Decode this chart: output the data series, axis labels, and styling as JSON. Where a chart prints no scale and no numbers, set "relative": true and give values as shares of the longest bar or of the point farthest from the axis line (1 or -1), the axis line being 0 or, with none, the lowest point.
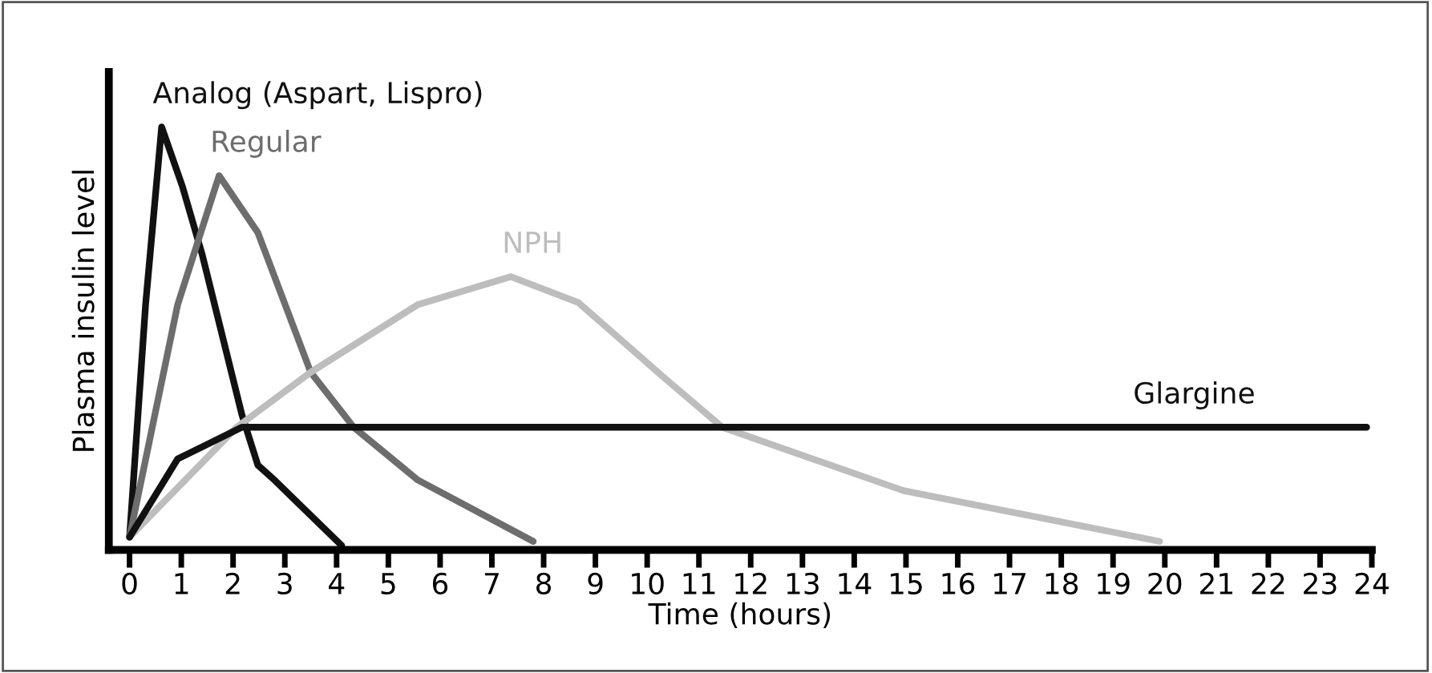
{
  "chart_data": {
    "type": "line",
    "relative": true,
    "xlabel": "Time (hours)",
    "ylabel": "Plasma insulin level",
    "xlim": [
      -0.4,
      24
    ],
    "xticks": [
      0,
      1,
      2,
      3,
      4,
      5,
      6,
      7,
      8,
      9,
      10,
      11,
      12,
      13,
      14,
      15,
      16,
      17,
      18,
      19,
      20,
      21,
      22,
      23,
      24
    ],
    "grid": false,
    "legend": false,
    "marker": "none",
    "line_style": "solid",
    "series": [
      {
        "name": "Analog (Aspart, Lispro)",
        "color": "#111111",
        "x": [
          0,
          0.31,
          0.62,
          1.02,
          1.4,
          2.17,
          2.48,
          2.8,
          4.1
        ],
        "values": [
          0.03,
          0.58,
          1,
          0.86,
          0.7,
          0.32,
          0.2,
          0.165,
          0.01
        ]
      },
      {
        "name": "Regular",
        "color": "#6d6d6d",
        "x": [
          0,
          0.93,
          1.73,
          2.48,
          3.5,
          4.33,
          5.57,
          7.8
        ],
        "values": [
          0.03,
          0.58,
          0.885,
          0.75,
          0.42,
          0.29,
          0.165,
          0.02
        ]
      },
      {
        "name": "NPH",
        "color": "#bdbdbd",
        "x": [
          0,
          2.07,
          3.5,
          5.57,
          7.37,
          8.67,
          10.3,
          11.45,
          14.95,
          19.9
        ],
        "values": [
          0.03,
          0.29,
          0.42,
          0.58,
          0.646,
          0.585,
          0.41,
          0.29,
          0.14,
          0.02
        ]
      },
      {
        "name": "Glargine",
        "color": "#111111",
        "x": [
          0,
          0.93,
          2.17,
          2.8,
          23.9
        ],
        "values": [
          0.03,
          0.215,
          0.29,
          0.29,
          0.29
        ]
      }
    ]
  }
}
